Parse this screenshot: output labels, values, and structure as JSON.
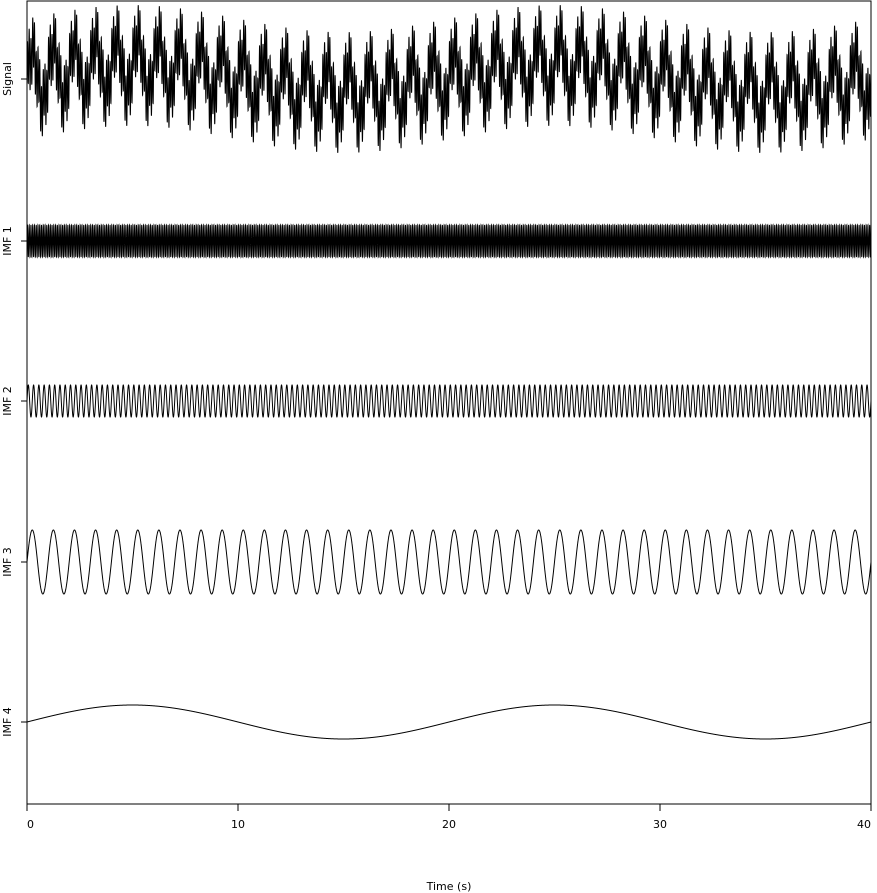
{
  "chart_data": {
    "type": "line",
    "title": "",
    "xlabel": "Time (s)",
    "xlim": [
      0,
      40
    ],
    "x_ticks": [
      "0",
      "10",
      "20",
      "30",
      "40"
    ],
    "x_tick_values": [
      0,
      10,
      20,
      30,
      40
    ],
    "grid": false,
    "legend": "none",
    "line_color": "#000000",
    "series": [
      {
        "name": "Signal",
        "components": [
          {
            "amplitude": 1.0,
            "frequency_hz": 12.0,
            "phase": 0.0
          },
          {
            "amplitude": 0.45,
            "frequency_hz": 4.0,
            "phase": 0.0
          },
          {
            "amplitude": 1.0,
            "frequency_hz": 1.0,
            "phase": 0.0
          },
          {
            "amplitude": 0.5,
            "frequency_hz": 0.05,
            "phase": 0.0
          }
        ]
      },
      {
        "name": "IMF 1",
        "components": [
          {
            "amplitude": 1.0,
            "frequency_hz": 12.0,
            "phase": 0.0
          }
        ]
      },
      {
        "name": "IMF 2",
        "components": [
          {
            "amplitude": 1.0,
            "frequency_hz": 4.0,
            "phase": 0.0
          }
        ]
      },
      {
        "name": "IMF 3",
        "components": [
          {
            "amplitude": 1.0,
            "frequency_hz": 1.0,
            "phase": 0.0
          }
        ]
      },
      {
        "name": "IMF 4",
        "components": [
          {
            "amplitude": 1.0,
            "frequency_hz": 0.05,
            "phase": 0.0
          }
        ]
      }
    ]
  }
}
